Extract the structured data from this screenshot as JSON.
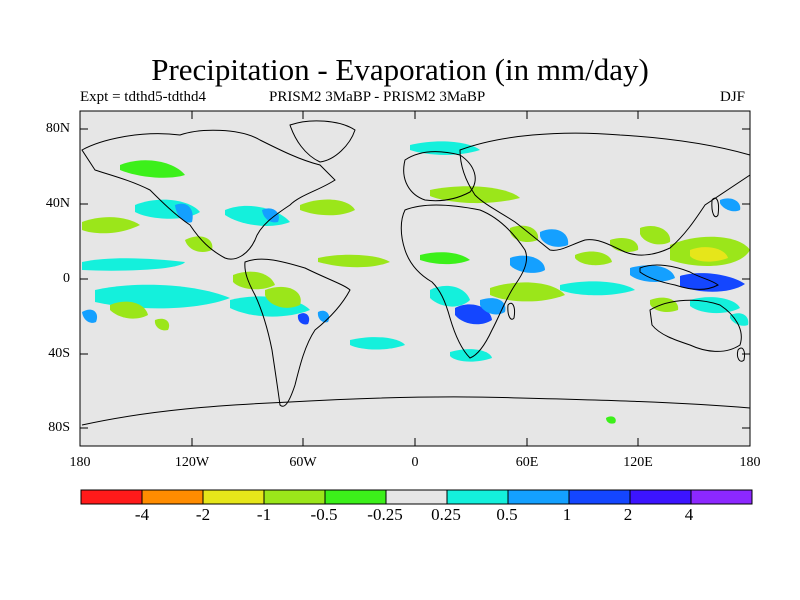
{
  "title": "Precipitation - Evaporation (in mm/day)",
  "subtitle_left": "Expt = tdthd5-tdthd4",
  "subtitle_center": "PRISM2     3MaBP - PRISM2     3MaBP",
  "subtitle_right": "DJF",
  "map": {
    "projection": "cylindrical equidistant",
    "background_color": "#e6e6e6",
    "lat_labels": [
      "80N",
      "40N",
      "0",
      "40S",
      "80S"
    ],
    "lon_labels": [
      "180",
      "120W",
      "60W",
      "0",
      "60E",
      "120E",
      "180"
    ]
  },
  "colorbar": {
    "labels": [
      "-4",
      "-2",
      "-1",
      "-0.5",
      "-0.25",
      "0.25",
      "0.5",
      "1",
      "2",
      "4"
    ],
    "colors": [
      "#ff1a1a",
      "#ff8c00",
      "#e6e61a",
      "#9be61a",
      "#3cf01a",
      "#e6e6e6",
      "#14f0dc",
      "#14a0ff",
      "#1446ff",
      "#3c14ff",
      "#8c28ff"
    ]
  }
}
